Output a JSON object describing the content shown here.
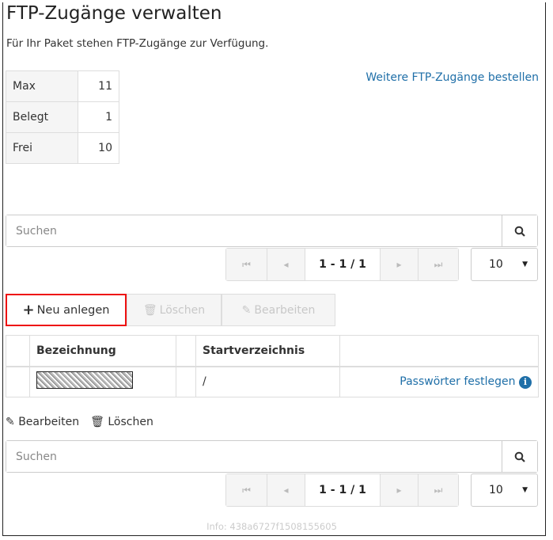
{
  "header": {
    "title": "FTP-Zugänge verwalten",
    "subtitle": "Für Ihr Paket stehen FTP-Zugänge zur Verfügung."
  },
  "stats": [
    {
      "label": "Max",
      "value": "11"
    },
    {
      "label": "Belegt",
      "value": "1"
    },
    {
      "label": "Frei",
      "value": "10"
    }
  ],
  "order_link": "Weitere FTP-Zugänge bestellen",
  "search": {
    "placeholder": "Suchen"
  },
  "pager": {
    "label": "1 - 1 / 1",
    "page_size": "10"
  },
  "toolbar": {
    "new": "Neu anlegen",
    "delete": "Löschen",
    "edit": "Bearbeiten"
  },
  "table": {
    "headers": [
      "Bezeichnung",
      "Startverzeichnis"
    ],
    "rows": [
      {
        "name": "",
        "dir": "/",
        "action": "Passwörter festlegen"
      }
    ]
  },
  "bottom_actions": {
    "edit": "Bearbeiten",
    "delete": "Löschen"
  },
  "info": "Info: 438a6727f1508155605",
  "colors": {
    "link": "#1f6fa8",
    "highlight": "#ee1111"
  }
}
